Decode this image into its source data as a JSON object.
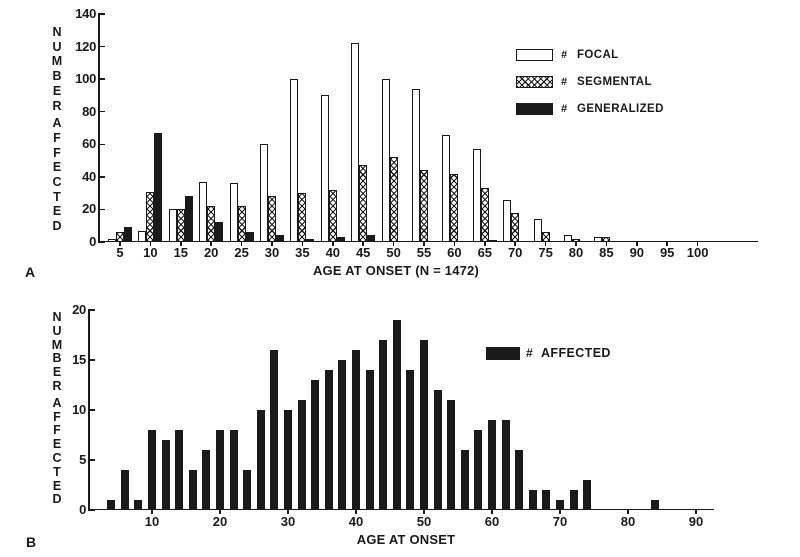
{
  "figure": {
    "panel_a_label": "A",
    "panel_b_label": "B",
    "background_color": "#ffffff",
    "ink_color": "#1a1a1a"
  },
  "chart_data": [
    {
      "id": "panel-A",
      "type": "bar",
      "title": "",
      "xlabel": "AGE AT ONSET (N = 1472)",
      "ylabel": "NUMBER AFFECTED",
      "ylim": [
        0,
        140
      ],
      "yticks": [
        0,
        20,
        40,
        60,
        80,
        100,
        120,
        140
      ],
      "categories": [
        5,
        10,
        15,
        20,
        25,
        30,
        35,
        40,
        45,
        50,
        55,
        60,
        65,
        70,
        75,
        80,
        85,
        90,
        95,
        100
      ],
      "xticks": [
        5,
        10,
        15,
        20,
        25,
        30,
        35,
        40,
        45,
        50,
        55,
        60,
        65,
        70,
        75,
        80,
        85,
        90,
        95,
        100
      ],
      "grid": false,
      "legend_position": "upper-right",
      "series": [
        {
          "prefix": "#",
          "name": "FOCAL",
          "swatch": "open",
          "values": [
            2,
            7,
            20,
            37,
            36,
            60,
            100,
            90,
            122,
            100,
            94,
            66,
            57,
            26,
            14,
            4,
            3,
            0,
            0,
            0
          ]
        },
        {
          "prefix": "#",
          "name": "SEGMENTAL",
          "swatch": "crosshatch",
          "values": [
            6,
            31,
            20,
            22,
            22,
            28,
            30,
            32,
            47,
            52,
            44,
            42,
            33,
            18,
            6,
            2,
            3,
            0,
            0,
            0
          ]
        },
        {
          "prefix": "#",
          "name": "GENERALIZED",
          "swatch": "solid",
          "values": [
            9,
            67,
            28,
            12,
            6,
            4,
            2,
            3,
            4,
            0,
            0,
            0,
            1,
            0,
            0,
            0,
            0,
            0,
            0,
            0
          ]
        }
      ]
    },
    {
      "id": "panel-B",
      "type": "bar",
      "title": "",
      "xlabel": "AGE AT ONSET",
      "ylabel": "NUMBER AFFECTED",
      "ylim": [
        0,
        20
      ],
      "yticks": [
        0,
        5,
        10,
        15,
        20
      ],
      "x": [
        4,
        6,
        8,
        10,
        12,
        14,
        16,
        18,
        20,
        22,
        24,
        26,
        28,
        30,
        32,
        34,
        36,
        38,
        40,
        42,
        44,
        46,
        48,
        50,
        52,
        54,
        56,
        58,
        60,
        62,
        64,
        66,
        68,
        70,
        72,
        74,
        76,
        78,
        80,
        82,
        84,
        86,
        88,
        90
      ],
      "xticks": [
        10,
        20,
        30,
        40,
        50,
        60,
        70,
        80,
        90
      ],
      "grid": false,
      "legend_position": "upper-right",
      "series": [
        {
          "prefix": "#",
          "name": "AFFECTED",
          "swatch": "solid",
          "values": [
            1,
            4,
            1,
            8,
            7,
            8,
            4,
            6,
            8,
            8,
            4,
            10,
            16,
            10,
            11,
            13,
            14,
            15,
            16,
            14,
            17,
            19,
            14,
            17,
            12,
            11,
            6,
            8,
            9,
            9,
            6,
            2,
            2,
            1,
            2,
            3,
            0,
            0,
            0,
            0,
            1,
            0,
            0,
            0
          ]
        }
      ]
    }
  ]
}
